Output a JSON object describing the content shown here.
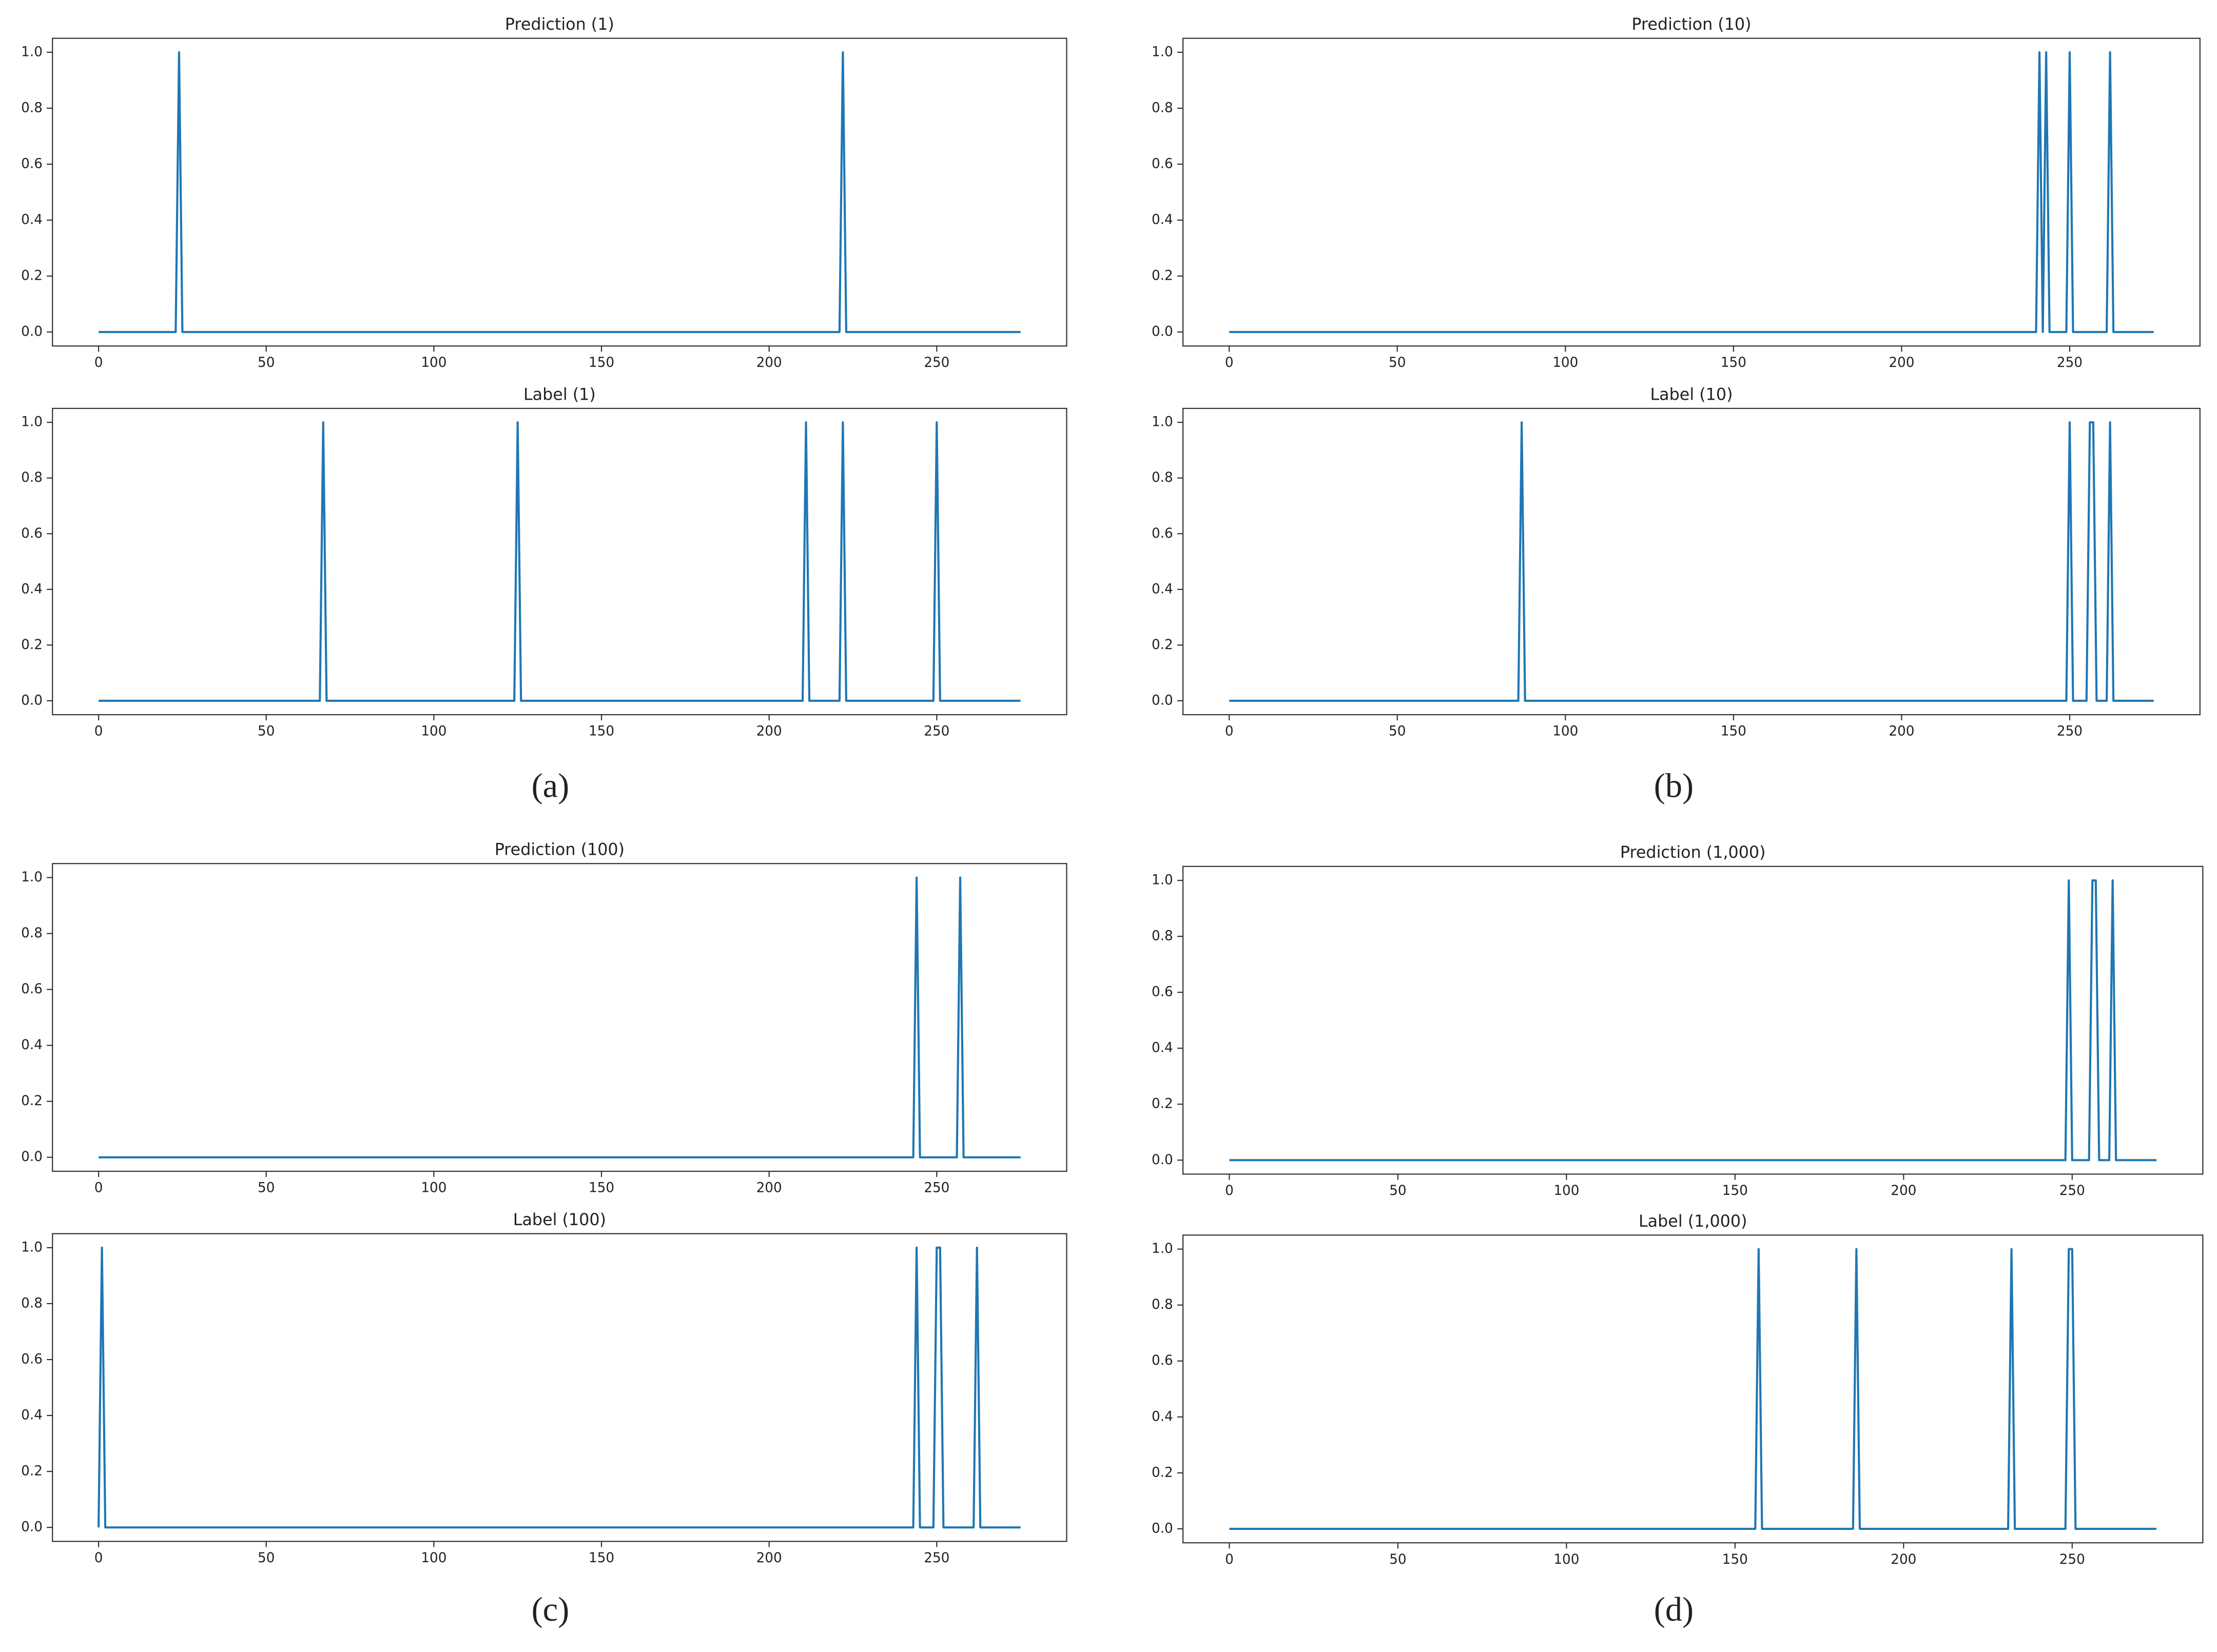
{
  "chart_data": [
    {
      "type": "line",
      "title": "Prediction (1)",
      "color": "#1f77b4",
      "x": [
        0,
        23,
        24,
        25,
        221,
        222,
        223,
        275
      ],
      "values": [
        0,
        0,
        1,
        0,
        0,
        1,
        0,
        0
      ],
      "xlim": [
        -13.75,
        288.75
      ],
      "ylim": [
        -0.05,
        1.05
      ],
      "xticks": [
        0,
        50,
        100,
        150,
        200,
        250
      ],
      "yticks": [
        {
          "value": 0,
          "label": "0.0"
        },
        {
          "value": 0.2,
          "label": "0.2"
        },
        {
          "value": 0.4,
          "label": "0.4"
        },
        {
          "value": 0.6,
          "label": "0.6"
        },
        {
          "value": 0.8,
          "label": "0.8"
        },
        {
          "value": 1,
          "label": "1.0"
        }
      ]
    },
    {
      "type": "line",
      "title": "Label (1)",
      "color": "#1f77b4",
      "x": [
        0,
        66,
        67,
        68,
        124,
        125,
        126,
        210,
        211,
        212,
        221,
        222,
        223,
        249,
        250,
        251,
        275
      ],
      "values": [
        0,
        0,
        1,
        0,
        0,
        1,
        0,
        0,
        1,
        0,
        0,
        1,
        0,
        0,
        1,
        0,
        0
      ],
      "xlim": [
        -13.75,
        288.75
      ],
      "ylim": [
        -0.05,
        1.05
      ],
      "xticks": [
        0,
        50,
        100,
        150,
        200,
        250
      ],
      "yticks": [
        {
          "value": 0,
          "label": "0.0"
        },
        {
          "value": 0.2,
          "label": "0.2"
        },
        {
          "value": 0.4,
          "label": "0.4"
        },
        {
          "value": 0.6,
          "label": "0.6"
        },
        {
          "value": 0.8,
          "label": "0.8"
        },
        {
          "value": 1,
          "label": "1.0"
        }
      ]
    },
    {
      "type": "line",
      "title": "Prediction (10)",
      "color": "#1f77b4",
      "x": [
        0,
        240,
        241,
        242,
        243,
        244,
        249,
        250,
        251,
        261,
        262,
        263,
        275
      ],
      "values": [
        0,
        0,
        1,
        0,
        1,
        0,
        0,
        1,
        0,
        0,
        1,
        0,
        0
      ],
      "xlim": [
        -13.75,
        288.75
      ],
      "ylim": [
        -0.05,
        1.05
      ],
      "xticks": [
        0,
        50,
        100,
        150,
        200,
        250
      ],
      "yticks": [
        {
          "value": 0,
          "label": "0.0"
        },
        {
          "value": 0.2,
          "label": "0.2"
        },
        {
          "value": 0.4,
          "label": "0.4"
        },
        {
          "value": 0.6,
          "label": "0.6"
        },
        {
          "value": 0.8,
          "label": "0.8"
        },
        {
          "value": 1,
          "label": "1.0"
        }
      ]
    },
    {
      "type": "line",
      "title": "Label (10)",
      "color": "#1f77b4",
      "x": [
        0,
        86,
        87,
        88,
        249,
        250,
        251,
        255,
        256,
        257,
        258,
        261,
        262,
        263,
        275
      ],
      "values": [
        0,
        0,
        1,
        0,
        0,
        1,
        0,
        0,
        1,
        1,
        0,
        0,
        1,
        0,
        0
      ],
      "xlim": [
        -13.75,
        288.75
      ],
      "ylim": [
        -0.05,
        1.05
      ],
      "xticks": [
        0,
        50,
        100,
        150,
        200,
        250
      ],
      "yticks": [
        {
          "value": 0,
          "label": "0.0"
        },
        {
          "value": 0.2,
          "label": "0.2"
        },
        {
          "value": 0.4,
          "label": "0.4"
        },
        {
          "value": 0.6,
          "label": "0.6"
        },
        {
          "value": 0.8,
          "label": "0.8"
        },
        {
          "value": 1,
          "label": "1.0"
        }
      ]
    },
    {
      "type": "line",
      "title": "Prediction (100)",
      "color": "#1f77b4",
      "x": [
        0,
        243,
        244,
        245,
        256,
        257,
        258,
        275
      ],
      "values": [
        0,
        0,
        1,
        0,
        0,
        1,
        0,
        0
      ],
      "xlim": [
        -13.75,
        288.75
      ],
      "ylim": [
        -0.05,
        1.05
      ],
      "xticks": [
        0,
        50,
        100,
        150,
        200,
        250
      ],
      "yticks": [
        {
          "value": 0,
          "label": "0.0"
        },
        {
          "value": 0.2,
          "label": "0.2"
        },
        {
          "value": 0.4,
          "label": "0.4"
        },
        {
          "value": 0.6,
          "label": "0.6"
        },
        {
          "value": 0.8,
          "label": "0.8"
        },
        {
          "value": 1,
          "label": "1.0"
        }
      ]
    },
    {
      "type": "line",
      "title": "Label (100)",
      "color": "#1f77b4",
      "x": [
        0,
        1,
        2,
        243,
        244,
        245,
        249,
        250,
        251,
        252,
        261,
        262,
        263,
        275
      ],
      "values": [
        0,
        1,
        0,
        0,
        1,
        0,
        0,
        1,
        1,
        0,
        0,
        1,
        0,
        0
      ],
      "xlim": [
        -13.75,
        288.75
      ],
      "ylim": [
        -0.05,
        1.05
      ],
      "xticks": [
        0,
        50,
        100,
        150,
        200,
        250
      ],
      "yticks": [
        {
          "value": 0,
          "label": "0.0"
        },
        {
          "value": 0.2,
          "label": "0.2"
        },
        {
          "value": 0.4,
          "label": "0.4"
        },
        {
          "value": 0.6,
          "label": "0.6"
        },
        {
          "value": 0.8,
          "label": "0.8"
        },
        {
          "value": 1,
          "label": "1.0"
        }
      ]
    },
    {
      "type": "line",
      "title": "Prediction (1,000)",
      "color": "#1f77b4",
      "x": [
        0,
        248,
        249,
        250,
        255,
        256,
        257,
        258,
        261,
        262,
        263,
        275
      ],
      "values": [
        0,
        0,
        1,
        0,
        0,
        1,
        1,
        0,
        0,
        1,
        0,
        0
      ],
      "xlim": [
        -13.75,
        288.75
      ],
      "ylim": [
        -0.05,
        1.05
      ],
      "xticks": [
        0,
        50,
        100,
        150,
        200,
        250
      ],
      "yticks": [
        {
          "value": 0,
          "label": "0.0"
        },
        {
          "value": 0.2,
          "label": "0.2"
        },
        {
          "value": 0.4,
          "label": "0.4"
        },
        {
          "value": 0.6,
          "label": "0.6"
        },
        {
          "value": 0.8,
          "label": "0.8"
        },
        {
          "value": 1,
          "label": "1.0"
        }
      ]
    },
    {
      "type": "line",
      "title": "Label (1,000)",
      "color": "#1f77b4",
      "x": [
        0,
        156,
        157,
        158,
        185,
        186,
        187,
        231,
        232,
        233,
        248,
        249,
        250,
        251,
        275
      ],
      "values": [
        0,
        0,
        1,
        0,
        0,
        1,
        0,
        0,
        1,
        0,
        0,
        1,
        1,
        0,
        0
      ],
      "xlim": [
        -13.75,
        288.75
      ],
      "ylim": [
        -0.05,
        1.05
      ],
      "xticks": [
        0,
        50,
        100,
        150,
        200,
        250
      ],
      "yticks": [
        {
          "value": 0,
          "label": "0.0"
        },
        {
          "value": 0.2,
          "label": "0.2"
        },
        {
          "value": 0.4,
          "label": "0.4"
        },
        {
          "value": 0.6,
          "label": "0.6"
        },
        {
          "value": 0.8,
          "label": "0.8"
        },
        {
          "value": 1,
          "label": "1.0"
        }
      ]
    }
  ],
  "captions": [
    "(a)",
    "(b)",
    "(c)",
    "(d)"
  ]
}
